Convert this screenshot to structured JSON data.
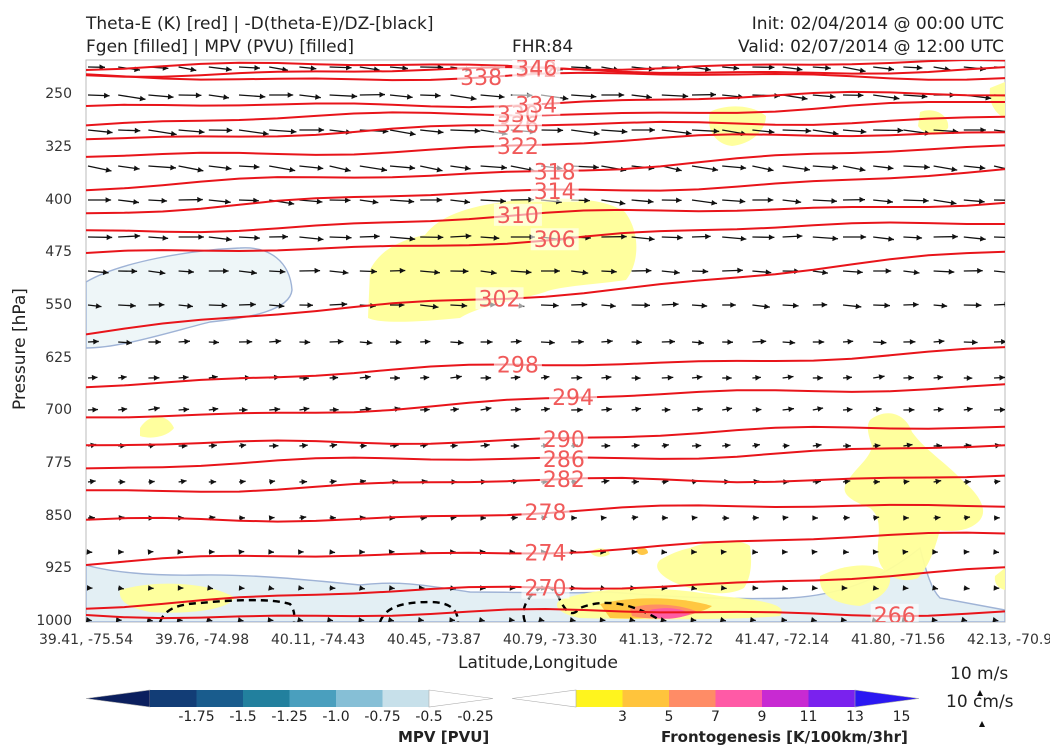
{
  "header": {
    "title_line1": "Theta-E (K) [red] | -D(theta-E)/DZ-[black]",
    "title_line2": "Fgen [filled] | MPV (PVU) [filled]",
    "fhr": "FHR:84",
    "init": "Init: 02/04/2014 @ 00:00 UTC",
    "valid": "Valid: 02/07/2014 @ 12:00 UTC"
  },
  "chart_data": {
    "type": "cross-section",
    "ylabel": "Pressure [hPa]",
    "xlabel": "Latitude,Longitude",
    "y_axis": {
      "reversed": true,
      "range": [
        200,
        1000
      ],
      "ticks": [
        250,
        325,
        400,
        475,
        550,
        625,
        700,
        775,
        850,
        925,
        1000
      ]
    },
    "x_ticks": [
      "39.41, -75.54",
      "39.76, -74.98",
      "40.11, -74.43",
      "40.45, -73.87",
      "40.79, -73.30",
      "41.13, -72.72",
      "41.47, -72.14",
      "41.80, -71.56",
      "42.13, -70.97"
    ],
    "theta_e_contours": [
      {
        "value": 266,
        "label": "266",
        "left_p": 990,
        "right_p": 985,
        "label_x": 0.88
      },
      {
        "value": 270,
        "label": "270",
        "left_p": 975,
        "right_p": 928,
        "label_x": 0.5
      },
      {
        "value": 274,
        "label": "274",
        "left_p": 918,
        "right_p": 875,
        "label_x": 0.5
      },
      {
        "value": 278,
        "label": "278",
        "left_p": 858,
        "right_p": 830,
        "label_x": 0.5
      },
      {
        "value": 282,
        "label": "282",
        "left_p": 812,
        "right_p": 790,
        "label_x": 0.52
      },
      {
        "value": 286,
        "label": "286",
        "left_p": 780,
        "right_p": 752,
        "label_x": 0.52
      },
      {
        "value": 290,
        "label": "290",
        "left_p": 752,
        "right_p": 722,
        "label_x": 0.52
      },
      {
        "value": 294,
        "label": "294",
        "left_p": 710,
        "right_p": 660,
        "label_x": 0.53
      },
      {
        "value": 298,
        "label": "298",
        "left_p": 660,
        "right_p": 612,
        "label_x": 0.47
      },
      {
        "value": 302,
        "label": "302",
        "left_p": 588,
        "right_p": 475,
        "label_x": 0.45
      },
      {
        "value": 306,
        "label": "306",
        "left_p": 480,
        "right_p": 428,
        "label_x": 0.51
      },
      {
        "value": 310,
        "label": "310",
        "left_p": 445,
        "right_p": 400,
        "label_x": 0.47
      },
      {
        "value": 314,
        "label": "314",
        "left_p": 415,
        "right_p": 360,
        "label_x": 0.51
      },
      {
        "value": 318,
        "label": "318",
        "left_p": 385,
        "right_p": 325,
        "label_x": 0.51
      },
      {
        "value": 322,
        "label": "322",
        "left_p": 340,
        "right_p": 300,
        "label_x": 0.47
      },
      {
        "value": 326,
        "label": "326",
        "left_p": 310,
        "right_p": 280,
        "label_x": 0.47
      },
      {
        "value": 330,
        "label": "330",
        "left_p": 290,
        "right_p": 262,
        "label_x": 0.47
      },
      {
        "value": 334,
        "label": "334",
        "left_p": 270,
        "right_p": 248,
        "label_x": 0.49
      },
      {
        "value": 338,
        "label": "338",
        "left_p": 225,
        "right_p": 222,
        "label_x": 0.43
      },
      {
        "value": 342,
        "label": "342",
        "left_p": 218,
        "right_p": 214,
        "label_x": 0.49
      },
      {
        "value": 346,
        "label": "346",
        "left_p": 210,
        "right_p": 206,
        "label_x": 0.49
      }
    ],
    "mpv_colorbar": {
      "title": "MPV [PVU]",
      "levels": [
        "-1.75",
        "-1.5",
        "-1.25",
        "-1.0",
        "-0.75",
        "-0.5",
        "-0.25"
      ],
      "colors": [
        "#0b1f5e",
        "#123d76",
        "#195c8d",
        "#22809e",
        "#4a9fbe",
        "#86bfd6",
        "#c7e0ea",
        "#ffffff"
      ]
    },
    "fgen_colorbar": {
      "title": "Frontogenesis [K/100km/3hr]",
      "levels": [
        "3",
        "5",
        "7",
        "9",
        "11",
        "13",
        "15"
      ],
      "colors": [
        "#ffffff",
        "#fff41e",
        "#ffc43c",
        "#ff8c66",
        "#ff5aa6",
        "#c82ad2",
        "#7a22ee",
        "#2b18f2"
      ]
    },
    "wind_reference": {
      "speed_label": "10 m/s",
      "vertical_label": "10 cm/s"
    }
  }
}
